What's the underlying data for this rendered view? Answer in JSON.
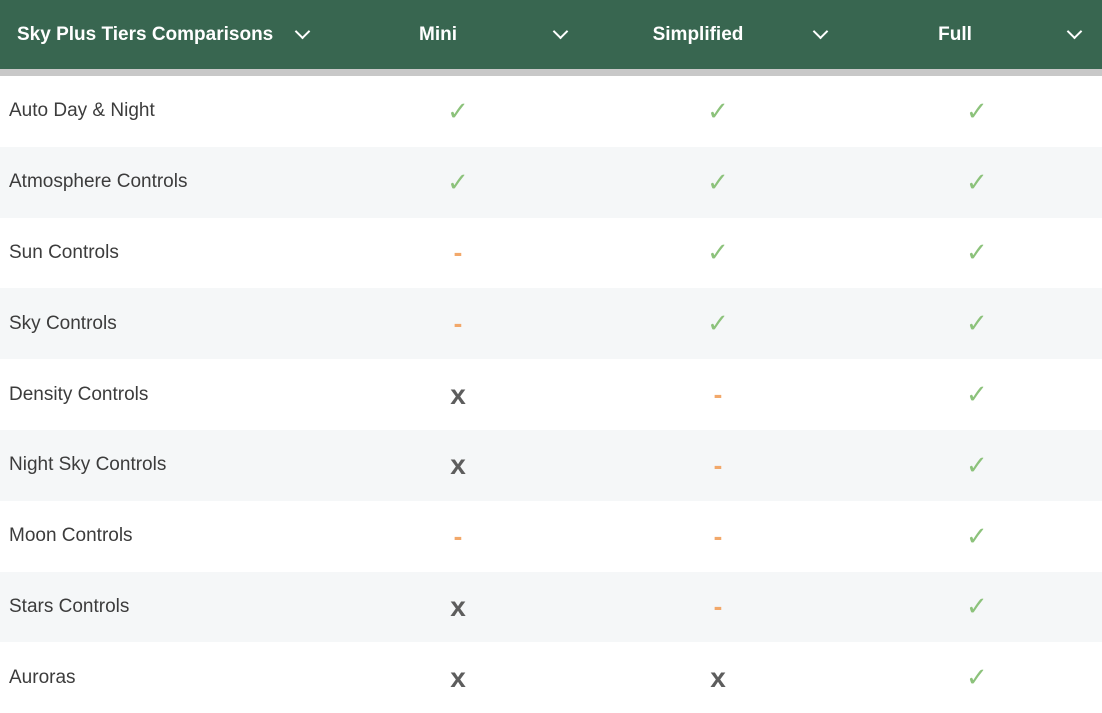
{
  "header": {
    "title": "Sky Plus Tiers Comparisons",
    "tiers": [
      "Mini",
      "Simplified",
      "Full"
    ]
  },
  "symbols": {
    "yes": "✓",
    "partial": "-",
    "no": "x"
  },
  "colors": {
    "header": "#386650",
    "yes": "#8cc27b",
    "partial": "#f2a86a",
    "no": "#5d5d5d"
  },
  "rows": [
    {
      "feature": "Auto Day & Night",
      "values": [
        "yes",
        "yes",
        "yes"
      ]
    },
    {
      "feature": "Atmosphere Controls",
      "values": [
        "yes",
        "yes",
        "yes"
      ]
    },
    {
      "feature": "Sun Controls",
      "values": [
        "partial",
        "yes",
        "yes"
      ]
    },
    {
      "feature": "Sky Controls",
      "values": [
        "partial",
        "yes",
        "yes"
      ]
    },
    {
      "feature": "Density Controls",
      "values": [
        "no",
        "partial",
        "yes"
      ]
    },
    {
      "feature": "Night Sky Controls",
      "values": [
        "no",
        "partial",
        "yes"
      ]
    },
    {
      "feature": "Moon Controls",
      "values": [
        "partial",
        "partial",
        "yes"
      ]
    },
    {
      "feature": "Stars Controls",
      "values": [
        "no",
        "partial",
        "yes"
      ]
    },
    {
      "feature": "Auroras",
      "values": [
        "no",
        "no",
        "yes"
      ]
    }
  ]
}
